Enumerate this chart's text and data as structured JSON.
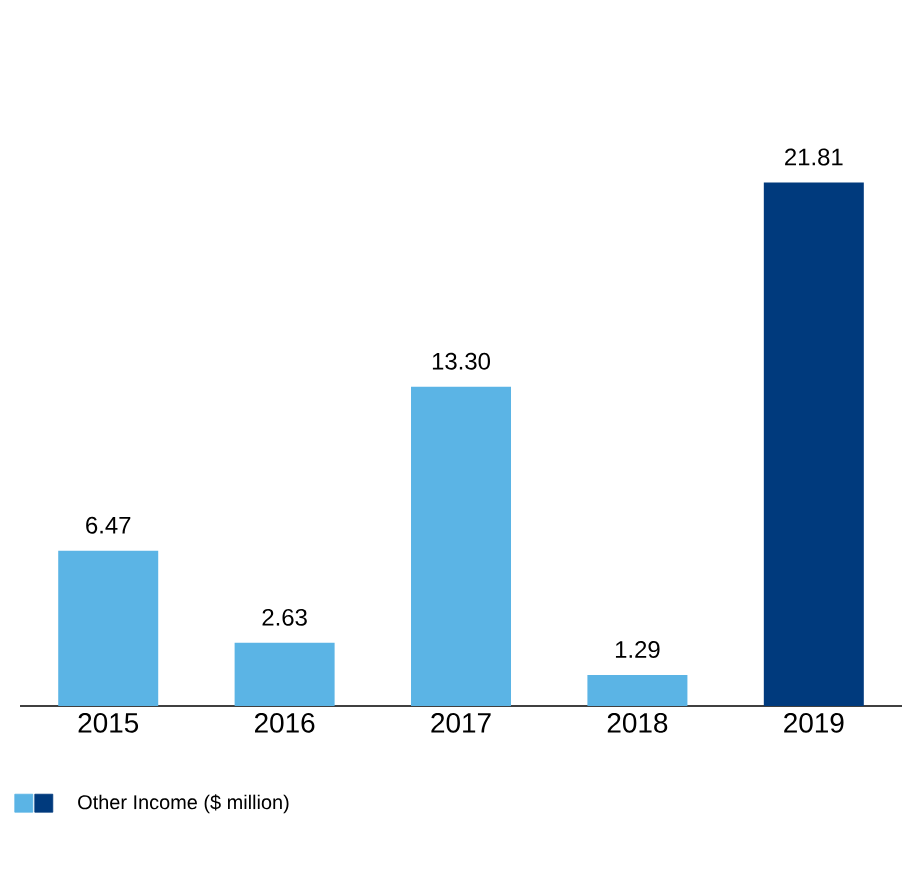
{
  "chart_data": {
    "type": "bar",
    "categories": [
      "2015",
      "2016",
      "2017",
      "2018",
      "2019"
    ],
    "series": [
      {
        "name": "Other Income ($ million)",
        "values": [
          6.47,
          2.63,
          13.3,
          1.29,
          21.81
        ],
        "colors": [
          "#5bb4e5",
          "#5bb4e5",
          "#5bb4e5",
          "#5bb4e5",
          "#003a7d"
        ],
        "value_labels": [
          "6.47",
          "2.63",
          "13.30",
          "1.29",
          "21.81"
        ]
      }
    ],
    "tick_labels": "x",
    "legend": "bottom left"
  }
}
